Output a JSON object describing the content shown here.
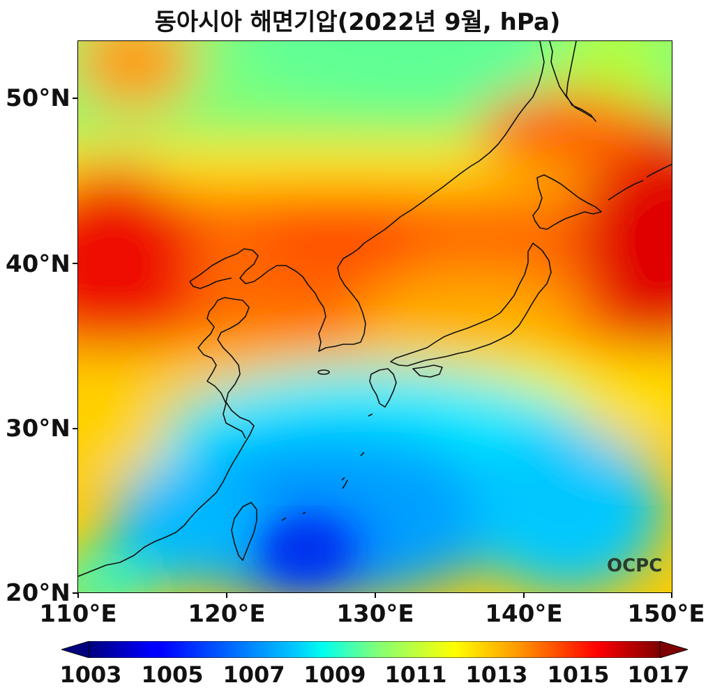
{
  "title": "동아시아 해면기압(2022년 9월, hPa)",
  "map": {
    "lon_range": [
      110,
      150
    ],
    "lat_range": [
      20,
      53.5
    ],
    "variable_unit": "hPa",
    "watermark": "OCPC"
  },
  "axes": {
    "y_ticks": [
      "50°N",
      "40°N",
      "30°N",
      "20°N"
    ],
    "x_ticks": [
      "110°E",
      "120°E",
      "130°E",
      "140°E",
      "150°E"
    ]
  },
  "colorbar": {
    "min": 1003,
    "max": 1017,
    "labels": [
      "1003",
      "1005",
      "1007",
      "1009",
      "1011",
      "1013",
      "1015",
      "1017"
    ],
    "colormap": "jet",
    "extend": "both",
    "colors": {
      "low": "#00007f",
      "blue": "#0000ff",
      "cyan": "#00ffff",
      "yellow": "#ffff00",
      "red": "#ff0000",
      "high": "#7f0000"
    }
  }
}
